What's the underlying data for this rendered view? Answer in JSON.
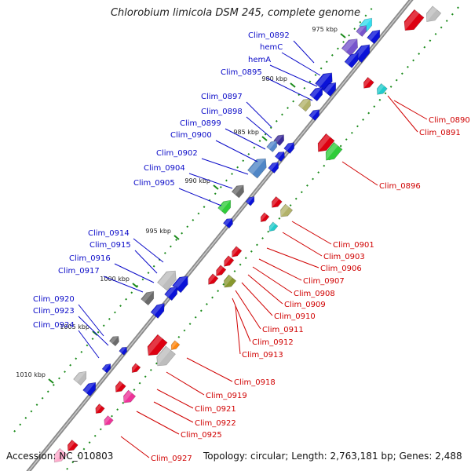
{
  "title": "Chlorobium limicola DSM 245, complete genome",
  "accession_label": "Accession: NC_010803",
  "summary_label": "Topology: circular; Length: 2,763,181 bp; Genes: 2,488",
  "colors": {
    "forward_label": "#0a0ac8",
    "reverse_label": "#d00000",
    "backbone": "#707070"
  },
  "ticks": [
    "975 kbp",
    "980 kbp",
    "985 kbp",
    "990 kbp",
    "995 kbp",
    "1000 kbp",
    "1005 kbp",
    "1010 kbp"
  ],
  "forward_labels": [
    "Clim_0892",
    "hemC",
    "hemA",
    "Clim_0895",
    "Clim_0897",
    "Clim_0898",
    "Clim_0899",
    "Clim_0900",
    "Clim_0902",
    "Clim_0904",
    "Clim_0905",
    "Clim_0914",
    "Clim_0915",
    "Clim_0916",
    "Clim_0917",
    "Clim_0920",
    "Clim_0923",
    "Clim_0924"
  ],
  "reverse_labels": [
    "Clim_0890",
    "Clim_0891",
    "Clim_0896",
    "Clim_0901",
    "Clim_0903",
    "Clim_0906",
    "Clim_0907",
    "Clim_0908",
    "Clim_0909",
    "Clim_0910",
    "Clim_0911",
    "Clim_0912",
    "Clim_0913",
    "Clim_0918",
    "Clim_0919",
    "Clim_0921",
    "Clim_0922",
    "Clim_0925",
    "Clim_0927"
  ]
}
